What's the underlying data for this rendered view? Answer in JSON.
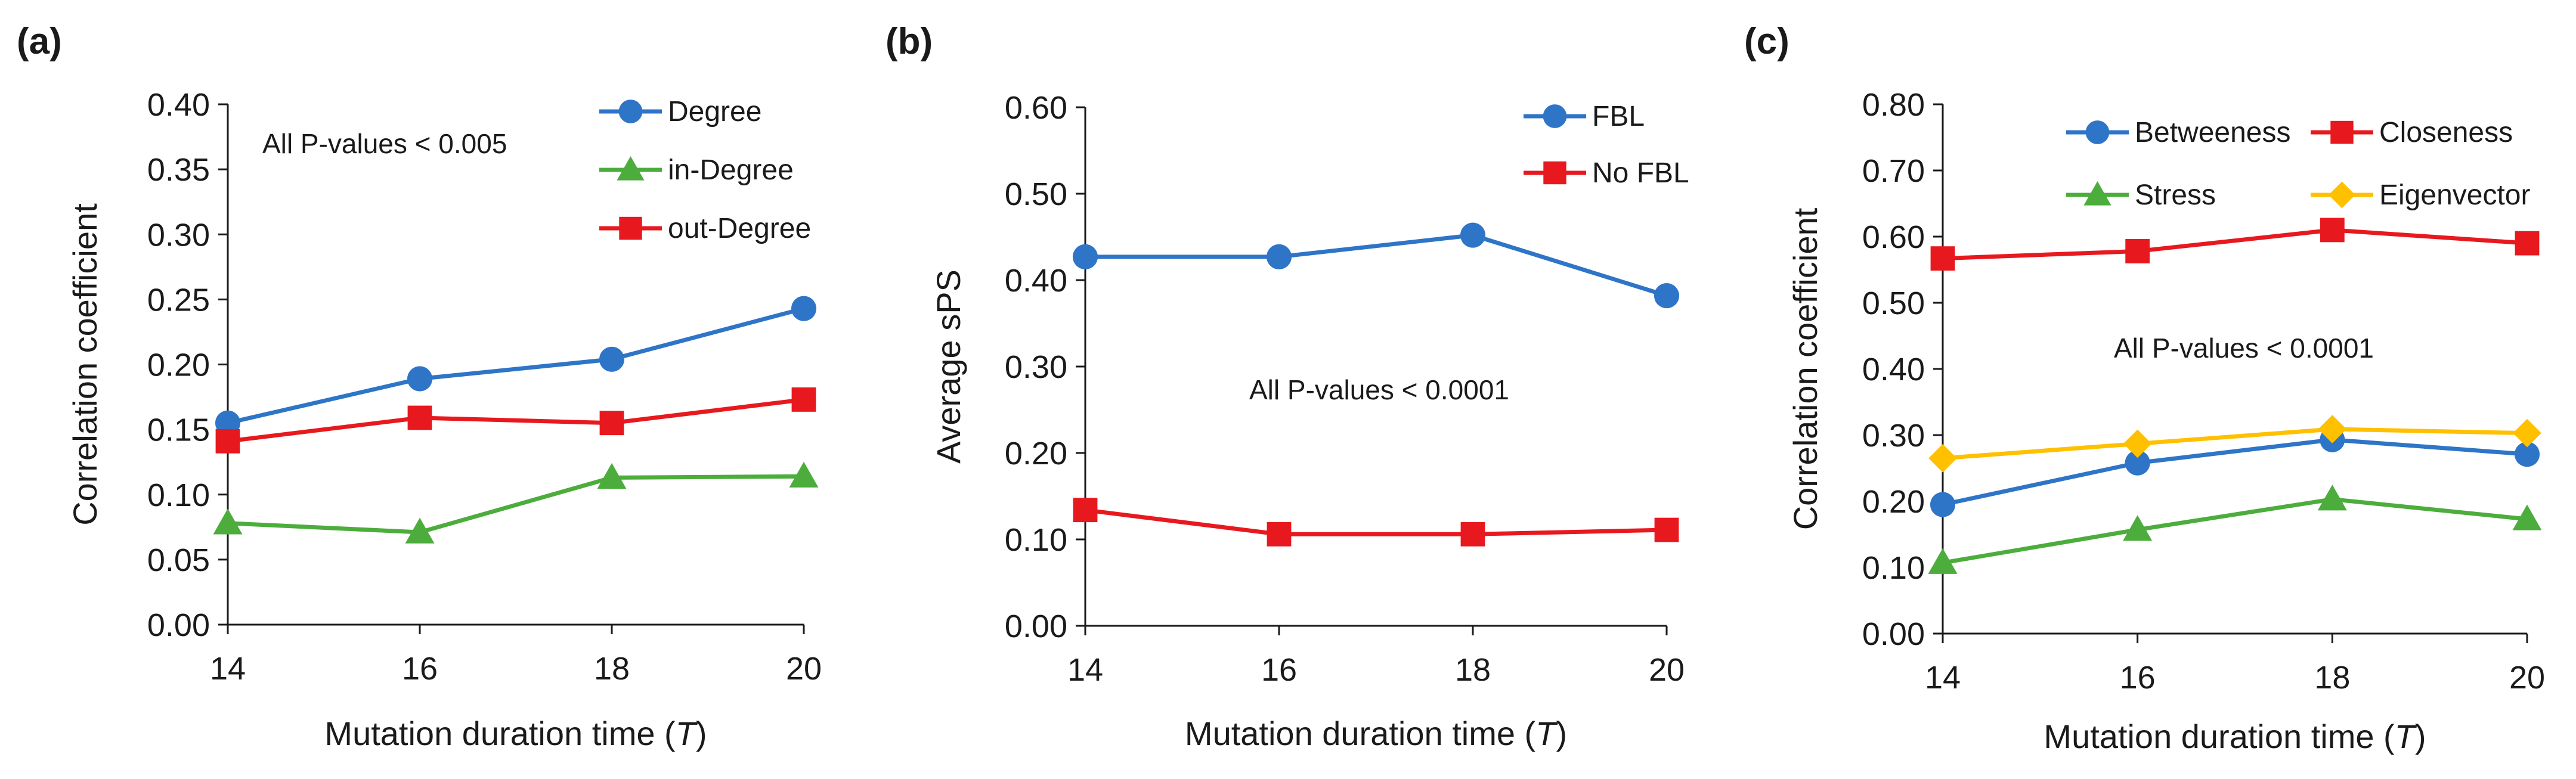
{
  "chart_data": [
    {
      "panel": "(a)",
      "type": "line",
      "x": [
        14,
        16,
        18,
        20
      ],
      "xlim": [
        14,
        20
      ],
      "xticks": [
        "14",
        "16",
        "18",
        "20"
      ],
      "xlabel": "Mutation duration time",
      "xlabel_var": "T",
      "ylabel": "Correlation coefficient",
      "ylim": [
        0,
        0.4
      ],
      "yticks": [
        "0.00",
        "0.05",
        "0.10",
        "0.15",
        "0.20",
        "0.25",
        "0.30",
        "0.35",
        "0.40"
      ],
      "annotation": "All P-values < 0.005",
      "legend_position": "top-right",
      "series": [
        {
          "name": "Degree",
          "color": "#2e75c8",
          "marker": "circle",
          "values": [
            0.155,
            0.189,
            0.204,
            0.243
          ]
        },
        {
          "name": "in-Degree",
          "color": "#4cad3c",
          "marker": "triangle",
          "values": [
            0.078,
            0.071,
            0.113,
            0.114
          ]
        },
        {
          "name": "out-Degree",
          "color": "#e8191e",
          "marker": "square",
          "values": [
            0.141,
            0.159,
            0.155,
            0.173
          ]
        }
      ]
    },
    {
      "panel": "(b)",
      "type": "line",
      "x": [
        14,
        16,
        18,
        20
      ],
      "xlim": [
        14,
        20
      ],
      "xticks": [
        "14",
        "16",
        "18",
        "20"
      ],
      "xlabel": "Mutation duration time",
      "xlabel_var": "T",
      "ylabel": "Average sPS",
      "ylim": [
        0,
        0.6
      ],
      "yticks": [
        "0.00",
        "0.10",
        "0.20",
        "0.30",
        "0.40",
        "0.50",
        "0.60"
      ],
      "annotation": "All P-values < 0.0001",
      "legend_position": "top-right",
      "series": [
        {
          "name": "FBL",
          "color": "#2e75c8",
          "marker": "circle",
          "values": [
            0.427,
            0.427,
            0.452,
            0.382
          ]
        },
        {
          "name": "No FBL",
          "color": "#e8191e",
          "marker": "square",
          "values": [
            0.134,
            0.106,
            0.106,
            0.111
          ]
        }
      ]
    },
    {
      "panel": "(c)",
      "type": "line",
      "x": [
        14,
        16,
        18,
        20
      ],
      "xlim": [
        14,
        20
      ],
      "xticks": [
        "14",
        "16",
        "18",
        "20"
      ],
      "xlabel": "Mutation duration time",
      "xlabel_var": "T",
      "ylabel": "Correlation coefficient",
      "ylim": [
        0,
        0.8
      ],
      "yticks": [
        "0.00",
        "0.10",
        "0.20",
        "0.30",
        "0.40",
        "0.50",
        "0.60",
        "0.70",
        "0.80"
      ],
      "annotation": "All P-values < 0.0001",
      "legend_position": "top",
      "series": [
        {
          "name": "Betweeness",
          "color": "#2e75c8",
          "marker": "circle",
          "values": [
            0.195,
            0.258,
            0.293,
            0.271
          ]
        },
        {
          "name": "Closeness",
          "color": "#e8191e",
          "marker": "square",
          "values": [
            0.567,
            0.578,
            0.61,
            0.59
          ]
        },
        {
          "name": "Stress",
          "color": "#4cad3c",
          "marker": "triangle",
          "values": [
            0.107,
            0.157,
            0.203,
            0.173
          ]
        },
        {
          "name": "Eigenvector",
          "color": "#ffc000",
          "marker": "diamond",
          "values": [
            0.265,
            0.287,
            0.309,
            0.303
          ]
        }
      ]
    }
  ]
}
